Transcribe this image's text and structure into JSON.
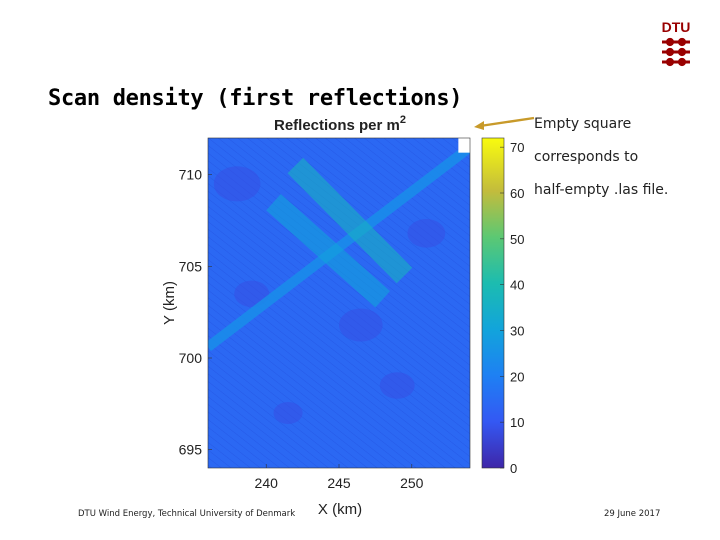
{
  "slide": {
    "title": "Scan density (first reflections)",
    "note_lines": [
      "Empty square",
      "corresponds to",
      "half-empty .las file."
    ],
    "footer_left": "DTU Wind Energy, Technical University of Denmark",
    "footer_right": "29 June 2017",
    "logo_text": "DTU",
    "logo_color": "#990000",
    "arrow_color": "#c89a2a"
  },
  "chart_data": {
    "type": "heatmap",
    "title": "Reflections per m",
    "title_superscript": "2",
    "xlabel": "X (km)",
    "ylabel": "Y (km)",
    "xlim": [
      236,
      254
    ],
    "ylim": [
      694,
      712
    ],
    "xticks": [
      240,
      245,
      250
    ],
    "yticks": [
      695,
      700,
      705,
      710
    ],
    "colorbar": {
      "range": [
        0,
        72
      ],
      "ticks": [
        0,
        10,
        20,
        30,
        40,
        50,
        60,
        70
      ],
      "colormap": "parula"
    },
    "background_density": 14,
    "flight_strips": [
      {
        "direction": "diagonal",
        "from": [
          236,
          700.6
        ],
        "to": [
          254,
          711.5
        ],
        "density": 24
      },
      {
        "direction": "diagonal",
        "from": [
          240.5,
          708.5
        ],
        "to": [
          248,
          703.2
        ],
        "density": 30
      },
      {
        "direction": "diagonal",
        "from": [
          242,
          710.5
        ],
        "to": [
          249.5,
          704.5
        ],
        "density": 36
      }
    ],
    "empty_square": {
      "x": [
        253.2,
        254
      ],
      "y": [
        711.2,
        712
      ],
      "note": "no data"
    }
  }
}
